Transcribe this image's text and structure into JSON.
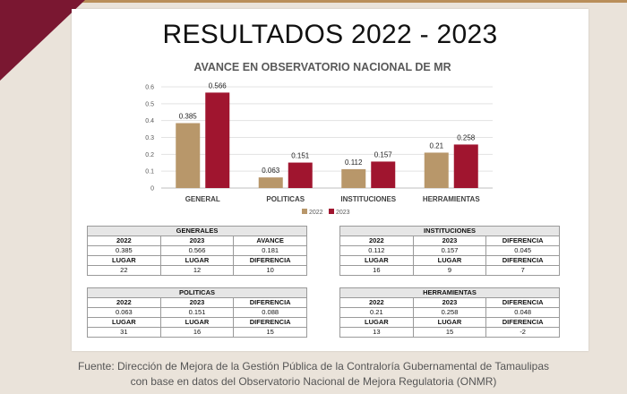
{
  "slide": {
    "title": "RESULTADOS 2022 - 2023",
    "source_line1": "Fuente: Dirección de Mejora de la Gestión Pública de la Contraloría Gubernamental de Tamaulipas",
    "source_line2": "con base en datos del Observatorio Nacional de Mejora Regulatoria (ONMR)",
    "colors": {
      "series_2022": "#b8976a",
      "series_2023": "#a0152f",
      "accent_wine": "#7a1731"
    }
  },
  "chart_data": {
    "type": "bar",
    "title": "AVANCE EN OBSERVATORIO NACIONAL DE MR",
    "categories": [
      "GENERAL",
      "POLITICAS",
      "INSTITUCIONES",
      "HERRAMIENTAS"
    ],
    "series": [
      {
        "name": "2022",
        "values": [
          0.385,
          0.063,
          0.112,
          0.21
        ],
        "labels": [
          "0.385",
          "0.063",
          "0.112",
          "0.21"
        ]
      },
      {
        "name": "2023",
        "values": [
          0.566,
          0.151,
          0.157,
          0.258
        ],
        "labels": [
          "0.566",
          "0.151",
          "0.157",
          "0.258"
        ]
      }
    ],
    "yticks": [
      "0",
      "0.1",
      "0.2",
      "0.3",
      "0.4",
      "0.5",
      "0.6"
    ],
    "ylim": [
      0,
      0.6
    ],
    "legend": "bottom-center",
    "grid": true
  },
  "tables": {
    "generales": {
      "title": "GENERALES",
      "head1": [
        "2022",
        "2023",
        "AVANCE"
      ],
      "row1": [
        "0.385",
        "0.566",
        "0.181"
      ],
      "head2": [
        "LUGAR",
        "LUGAR",
        "DIFERENCIA"
      ],
      "row2": [
        "22",
        "12",
        "10"
      ]
    },
    "instituciones": {
      "title": "INSTITUCIONES",
      "head1": [
        "2022",
        "2023",
        "DIFERENCIA"
      ],
      "row1": [
        "0.112",
        "0.157",
        "0.045"
      ],
      "head2": [
        "LUGAR",
        "LUGAR",
        "DIFERENCIA"
      ],
      "row2": [
        "16",
        "9",
        "7"
      ]
    },
    "politicas": {
      "title": "POLITICAS",
      "head1": [
        "2022",
        "2023",
        "DIFERENCIA"
      ],
      "row1": [
        "0.063",
        "0.151",
        "0.088"
      ],
      "head2": [
        "LUGAR",
        "LUGAR",
        "DIFERENCIA"
      ],
      "row2": [
        "31",
        "16",
        "15"
      ]
    },
    "herramientas": {
      "title": "HERRAMIENTAS",
      "head1": [
        "2022",
        "2023",
        "DIFERENCIA"
      ],
      "row1": [
        "0.21",
        "0.258",
        "0.048"
      ],
      "head2": [
        "LUGAR",
        "LUGAR",
        "DIFERENCIA"
      ],
      "row2": [
        "13",
        "15",
        "-2"
      ]
    }
  }
}
